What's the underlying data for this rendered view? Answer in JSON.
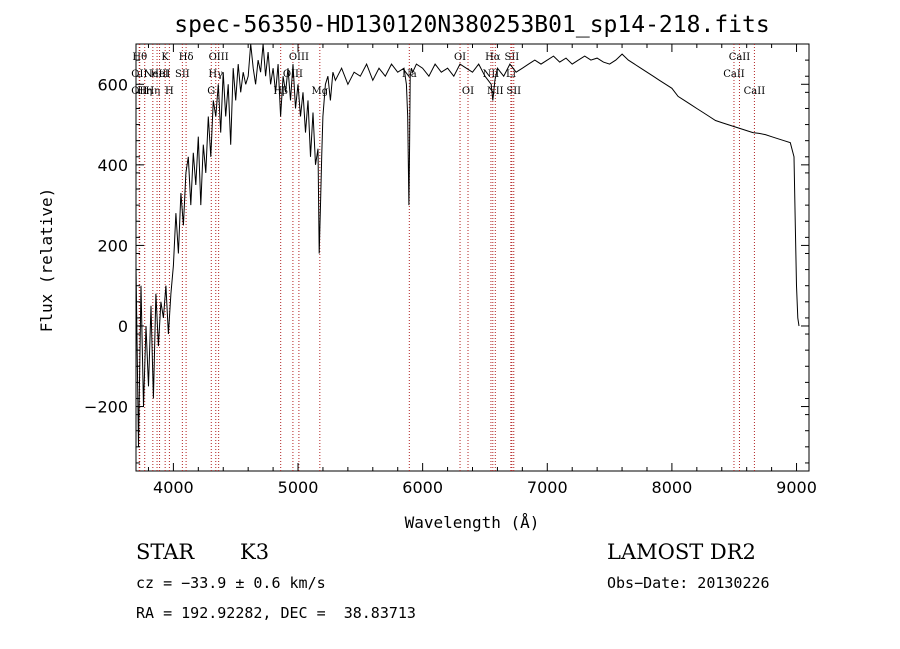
{
  "chart_data": {
    "type": "line",
    "title": "spec-56350-HD130120N380253B01_sp14-218.fits",
    "xlabel": "Wavelength (Å)",
    "ylabel": "Flux (relative)",
    "xlim": [
      3700,
      9100
    ],
    "ylim": [
      -360,
      700
    ],
    "grid": false,
    "legend": "none",
    "x_ticks": [
      4000,
      5000,
      6000,
      7000,
      8000,
      9000
    ],
    "y_ticks": [
      -200,
      0,
      200,
      400,
      600
    ],
    "series": [
      {
        "x": [
          3700,
          3720,
          3740,
          3760,
          3780,
          3800,
          3820,
          3840,
          3860,
          3880,
          3900,
          3920,
          3940,
          3960,
          3980,
          4000,
          4020,
          4040,
          4060,
          4080,
          4100,
          4120,
          4140,
          4160,
          4180,
          4200,
          4220,
          4240,
          4260,
          4280,
          4300,
          4320,
          4340,
          4360,
          4380,
          4400,
          4420,
          4440,
          4460,
          4480,
          4500,
          4520,
          4540,
          4560,
          4580,
          4600,
          4620,
          4640,
          4660,
          4680,
          4700,
          4720,
          4740,
          4760,
          4780,
          4800,
          4820,
          4840,
          4860,
          4880,
          4900,
          4920,
          4940,
          4960,
          4980,
          5000,
          5020,
          5040,
          5060,
          5080,
          5100,
          5120,
          5140,
          5160,
          5170,
          5180,
          5190,
          5200,
          5220,
          5240,
          5260,
          5280,
          5300,
          5350,
          5400,
          5450,
          5500,
          5550,
          5600,
          5650,
          5700,
          5750,
          5800,
          5850,
          5870,
          5880,
          5890,
          5895,
          5900,
          5910,
          5920,
          5950,
          6000,
          6050,
          6100,
          6150,
          6200,
          6250,
          6300,
          6350,
          6400,
          6450,
          6500,
          6550,
          6563,
          6580,
          6600,
          6650,
          6700,
          6750,
          6800,
          6850,
          6900,
          6950,
          7000,
          7050,
          7100,
          7150,
          7200,
          7250,
          7300,
          7350,
          7400,
          7450,
          7500,
          7550,
          7600,
          7650,
          7700,
          7750,
          7800,
          7850,
          7900,
          7950,
          8000,
          8050,
          8100,
          8150,
          8200,
          8250,
          8300,
          8350,
          8400,
          8450,
          8500,
          8550,
          8600,
          8650,
          8700,
          8750,
          8800,
          8850,
          8900,
          8950,
          8980,
          8990,
          9000,
          9010,
          9020
        ],
        "y": [
          150,
          -300,
          100,
          -200,
          0,
          -150,
          50,
          -180,
          80,
          -50,
          60,
          20,
          100,
          -20,
          80,
          150,
          280,
          180,
          330,
          250,
          380,
          420,
          300,
          430,
          350,
          470,
          300,
          450,
          380,
          520,
          420,
          560,
          520,
          600,
          480,
          630,
          520,
          600,
          450,
          640,
          560,
          650,
          580,
          630,
          600,
          620,
          700,
          640,
          600,
          660,
          630,
          700,
          620,
          680,
          600,
          640,
          580,
          650,
          520,
          620,
          580,
          640,
          560,
          650,
          540,
          600,
          520,
          580,
          480,
          560,
          420,
          530,
          400,
          440,
          180,
          300,
          420,
          520,
          600,
          620,
          560,
          630,
          610,
          640,
          600,
          630,
          620,
          650,
          610,
          640,
          620,
          650,
          630,
          640,
          600,
          520,
          300,
          450,
          620,
          640,
          630,
          650,
          640,
          620,
          650,
          630,
          640,
          620,
          650,
          640,
          630,
          650,
          620,
          600,
          560,
          610,
          640,
          620,
          650,
          630,
          640,
          650,
          660,
          650,
          660,
          670,
          655,
          665,
          650,
          660,
          670,
          660,
          665,
          655,
          650,
          660,
          675,
          660,
          650,
          640,
          630,
          620,
          610,
          600,
          590,
          570,
          560,
          550,
          540,
          530,
          520,
          510,
          505,
          500,
          495,
          490,
          485,
          480,
          478,
          475,
          470,
          465,
          460,
          455,
          420,
          250,
          100,
          20,
          0
        ]
      }
    ],
    "line_markers": [
      {
        "x": 3730,
        "label": "Hθ",
        "row": 1
      },
      {
        "x": 3727,
        "label": "OII",
        "row": 2
      },
      {
        "x": 3727,
        "label": "OII",
        "row": 3
      },
      {
        "x": 3770,
        "label": "Hη",
        "row": 3
      },
      {
        "x": 3835,
        "label": "Hη",
        "row": 3
      },
      {
        "x": 3869,
        "label": "NeIII",
        "row": 2
      },
      {
        "x": 3889,
        "label": "HeI",
        "row": 2
      },
      {
        "x": 3934,
        "label": "K",
        "row": 1
      },
      {
        "x": 3968,
        "label": "H",
        "row": 3
      },
      {
        "x": 4072,
        "label": "SII",
        "row": 2
      },
      {
        "x": 4102,
        "label": "Hδ",
        "row": 1
      },
      {
        "x": 4304,
        "label": "G",
        "row": 3
      },
      {
        "x": 4340,
        "label": "Hγ",
        "row": 2
      },
      {
        "x": 4363,
        "label": "OIII",
        "row": 1
      },
      {
        "x": 4861,
        "label": "Hβ",
        "row": 3
      },
      {
        "x": 4959,
        "label": "OIII",
        "row": 2
      },
      {
        "x": 5007,
        "label": "OIII",
        "row": 1
      },
      {
        "x": 5175,
        "label": "Mg",
        "row": 3
      },
      {
        "x": 5893,
        "label": "Na",
        "row": 2
      },
      {
        "x": 6300,
        "label": "OI",
        "row": 1
      },
      {
        "x": 6364,
        "label": "OI",
        "row": 3
      },
      {
        "x": 6548,
        "label": "NII",
        "row": 2
      },
      {
        "x": 6563,
        "label": "Hα",
        "row": 1
      },
      {
        "x": 6583,
        "label": "NII",
        "row": 3
      },
      {
        "x": 6708,
        "label": "Li",
        "row": 2
      },
      {
        "x": 6716,
        "label": "SII",
        "row": 1
      },
      {
        "x": 6731,
        "label": "SII",
        "row": 3
      },
      {
        "x": 8498,
        "label": "CaII",
        "row": 2
      },
      {
        "x": 8542,
        "label": "CaII",
        "row": 1
      },
      {
        "x": 8662,
        "label": "CaII",
        "row": 3
      }
    ]
  },
  "footer": {
    "object_class": "STAR",
    "subclass": "K3",
    "velocity": "cz = −33.9 ± 0.6 km/s",
    "coords": "RA = 192.92282, DEC =  38.83713",
    "survey": "LAMOST DR2",
    "obs_date": "Obs−Date: 20130226"
  }
}
